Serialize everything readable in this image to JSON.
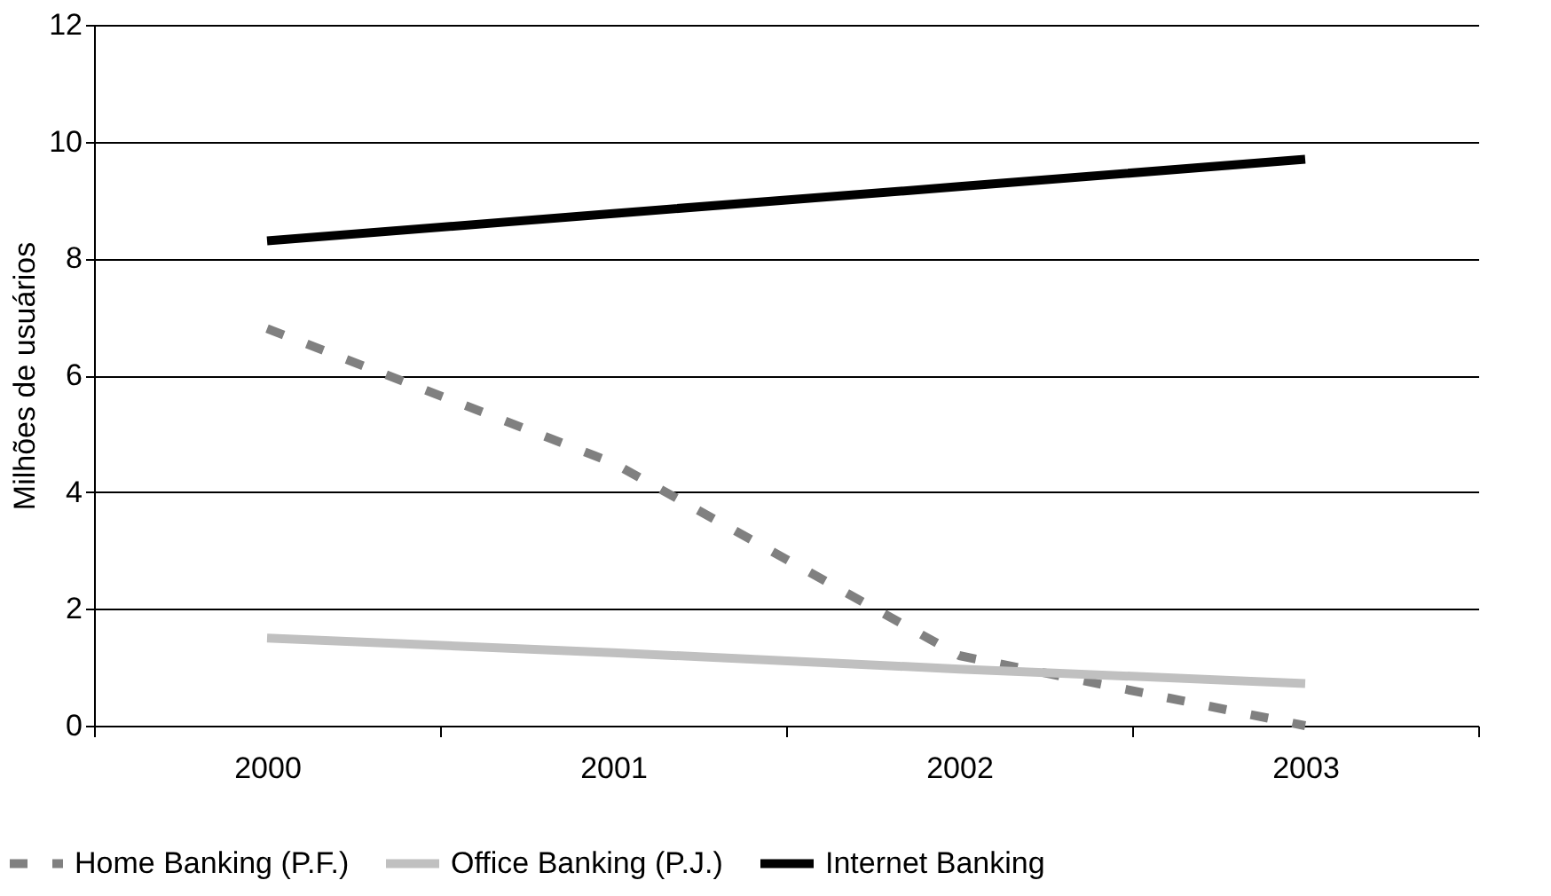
{
  "chart_data": {
    "type": "line",
    "ylabel": "Milhões de usuários",
    "categories": [
      "2000",
      "2001",
      "2002",
      "2003"
    ],
    "series": [
      {
        "name": "Home Banking (P.F.)",
        "color": "#808080",
        "line_style": "dashed",
        "values": [
          6.8,
          4.5,
          1.2,
          0
        ]
      },
      {
        "name": "Office Banking (P.J.)",
        "color": "#c0c0c0",
        "line_style": "solid",
        "values": [
          1.5,
          1.25,
          0.97,
          0.72
        ]
      },
      {
        "name": "Internet Banking",
        "color": "#000000",
        "line_style": "solid",
        "values": [
          8.3,
          8.77,
          9.23,
          9.7
        ]
      }
    ],
    "ylim": [
      0,
      12
    ],
    "yticks": [
      0,
      2,
      4,
      6,
      8,
      10,
      12
    ],
    "grid": "y",
    "legend": "bottom",
    "marker": "none"
  }
}
